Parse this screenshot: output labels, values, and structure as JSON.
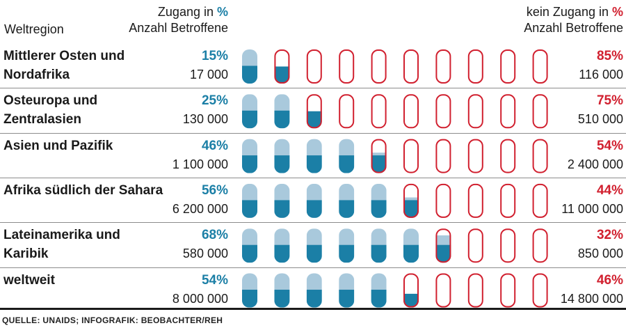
{
  "header": {
    "region_label": "Weltregion",
    "left_line1_text": "Zugang in ",
    "left_line1_pct": "%",
    "left_line2": "Anzahl Betroffene",
    "right_line1_text": "kein Zugang in ",
    "right_line1_pct": "%",
    "right_line2": "Anzahl Betroffene"
  },
  "colors": {
    "access_dark": "#1b7fa6",
    "access_light": "#a9c9dc",
    "no_access": "#d1202f"
  },
  "chart_data": {
    "type": "table",
    "title": "",
    "columns": [
      "Weltregion",
      "Zugang in %",
      "Anzahl Betroffene",
      "kein Zugang in %",
      "Anzahl Betroffene"
    ],
    "rows": [
      {
        "region": "Mittlerer Osten und Nordafrika",
        "access_pct": 15,
        "access_label": "15%",
        "access_count": "17 000",
        "no_access_pct": 85,
        "no_access_label": "85%",
        "no_access_count": "116 000"
      },
      {
        "region": "Osteuropa und Zentralasien",
        "access_pct": 25,
        "access_label": "25%",
        "access_count": "130 000",
        "no_access_pct": 75,
        "no_access_label": "75%",
        "no_access_count": "510 000"
      },
      {
        "region": "Asien und Pazifik",
        "access_pct": 46,
        "access_label": "46%",
        "access_count": "1 100 000",
        "no_access_pct": 54,
        "no_access_label": "54%",
        "no_access_count": "2 400 000"
      },
      {
        "region": "Afrika südlich der Sahara",
        "access_pct": 56,
        "access_label": "56%",
        "access_count": "6 200 000",
        "no_access_pct": 44,
        "no_access_label": "44%",
        "no_access_count": "11 000 000"
      },
      {
        "region": "Lateinamerika und Karibik",
        "access_pct": 68,
        "access_label": "68%",
        "access_count": "580 000",
        "no_access_pct": 32,
        "no_access_label": "32%",
        "no_access_count": "850 000"
      },
      {
        "region": "weltweit",
        "access_pct": 54,
        "access_label": "54%",
        "access_count": "8 000 000",
        "no_access_pct": 46,
        "no_access_label": "46%",
        "no_access_count": "14 800 000"
      }
    ]
  },
  "source": "QUELLE: UNAIDS; INFOGRAFIK: BEOBACHTER/REH"
}
